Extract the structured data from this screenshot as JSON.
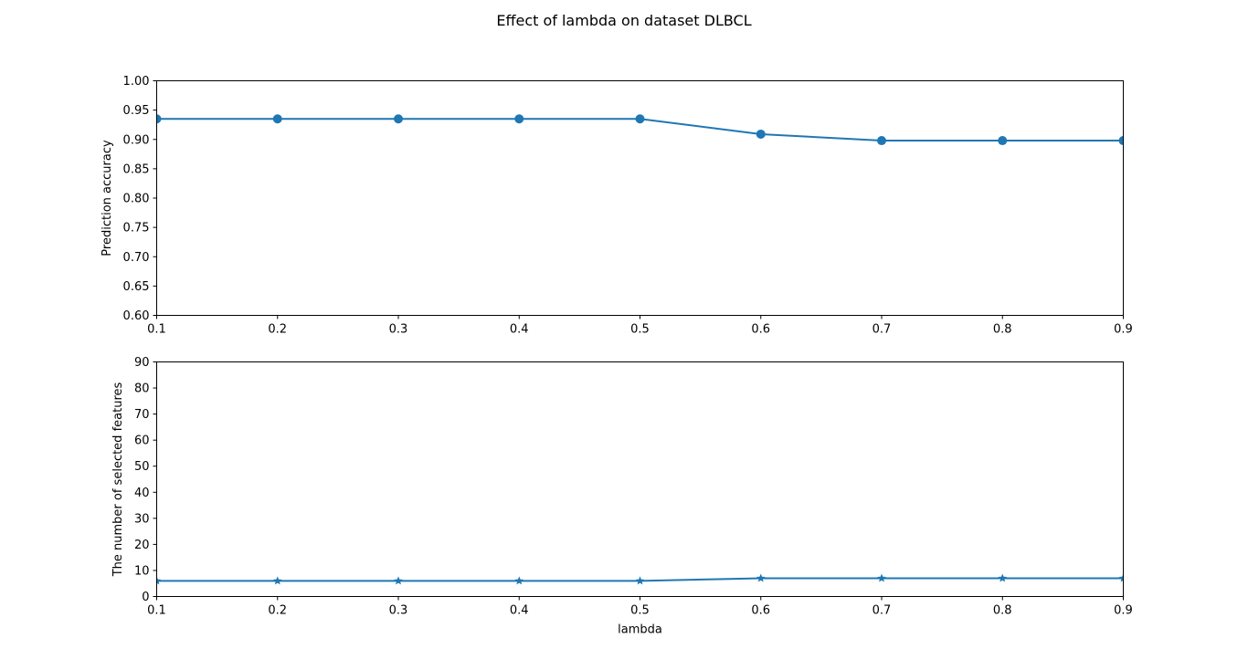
{
  "figure_title": "Effect of lambda on dataset DLBCL",
  "colors": {
    "series": "#1f77b4",
    "axes": "#000000",
    "background": "#ffffff"
  },
  "chart_data": [
    {
      "type": "line",
      "title": "",
      "xlabel": "",
      "ylabel": "Prediction accuracy",
      "xlim": [
        0.1,
        0.9
      ],
      "ylim": [
        0.6,
        1.0
      ],
      "x_ticks": [
        "0.1",
        "0.2",
        "0.3",
        "0.4",
        "0.5",
        "0.6",
        "0.7",
        "0.8",
        "0.9"
      ],
      "y_ticks": [
        "0.60",
        "0.65",
        "0.70",
        "0.75",
        "0.80",
        "0.85",
        "0.90",
        "0.95",
        "1.00"
      ],
      "grid": false,
      "marker": "circle",
      "series": [
        {
          "x": [
            0.1,
            0.2,
            0.3,
            0.4,
            0.5,
            0.6,
            0.7,
            0.8,
            0.9
          ],
          "values": [
            0.935,
            0.935,
            0.935,
            0.935,
            0.935,
            0.909,
            0.898,
            0.898,
            0.898
          ]
        }
      ]
    },
    {
      "type": "line",
      "title": "",
      "xlabel": "lambda",
      "ylabel": "The number of selected features",
      "xlim": [
        0.1,
        0.9
      ],
      "ylim": [
        0,
        90
      ],
      "x_ticks": [
        "0.1",
        "0.2",
        "0.3",
        "0.4",
        "0.5",
        "0.6",
        "0.7",
        "0.8",
        "0.9"
      ],
      "y_ticks": [
        "0",
        "10",
        "20",
        "30",
        "40",
        "50",
        "60",
        "70",
        "80",
        "90"
      ],
      "grid": false,
      "marker": "star",
      "series": [
        {
          "x": [
            0.1,
            0.2,
            0.3,
            0.4,
            0.5,
            0.6,
            0.7,
            0.8,
            0.9
          ],
          "values": [
            6,
            6,
            6,
            6,
            6,
            7,
            7,
            7,
            7
          ]
        }
      ]
    }
  ]
}
